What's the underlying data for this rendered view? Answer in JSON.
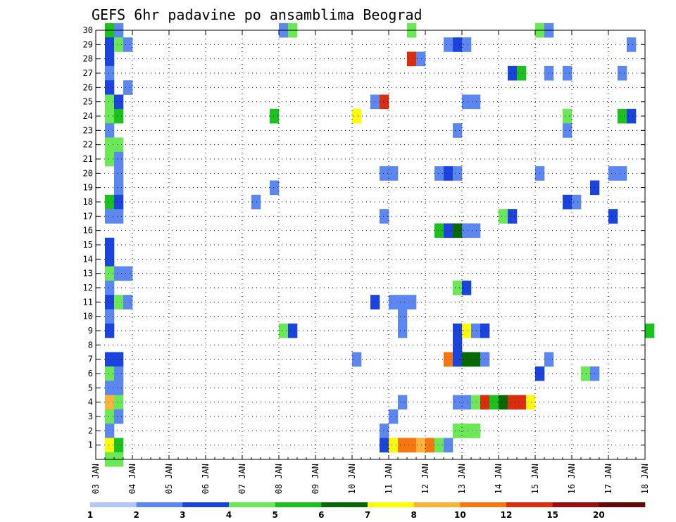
{
  "chart_data": {
    "type": "heatmap",
    "title": "GEFS 6hr padavine po ansamblima Beograd",
    "xlabel": "",
    "ylabel": "",
    "x_tick_labels": [
      "03 JAN",
      "04 JAN",
      "05 JAN",
      "06 JAN",
      "07 JAN",
      "08 JAN",
      "09 JAN",
      "10 JAN",
      "11 JAN",
      "12 JAN",
      "13 JAN",
      "14 JAN",
      "15 JAN",
      "16 JAN",
      "17 JAN",
      "18 JAN"
    ],
    "y_tick_labels": [
      "1",
      "2",
      "3",
      "4",
      "5",
      "6",
      "7",
      "8",
      "9",
      "10",
      "11",
      "12",
      "13",
      "14",
      "15",
      "16",
      "17",
      "18",
      "19",
      "20",
      "21",
      "22",
      "23",
      "24",
      "25",
      "26",
      "27",
      "28",
      "29",
      "30"
    ],
    "xlim": [
      0,
      15
    ],
    "ylim": [
      0,
      30
    ],
    "grid": true,
    "colorbar": {
      "labels": [
        "1",
        "2",
        "3",
        "4",
        "5",
        "6",
        "7",
        "8",
        "10",
        "12",
        "15",
        "20"
      ],
      "colors": [
        "#b3c6fa",
        "#5d87f0",
        "#1b43dd",
        "#6ae855",
        "#1bc21b",
        "#056905",
        "#fbfb08",
        "#fbb439",
        "#f7760d",
        "#db2d0d",
        "#990f0f",
        "#660707"
      ]
    },
    "cell_width_days": 0.25,
    "cells": [
      [
        0.25,
        30,
        4
      ],
      [
        0.5,
        30,
        1
      ],
      [
        5,
        30,
        1
      ],
      [
        5.25,
        30,
        3
      ],
      [
        8.5,
        30,
        3
      ],
      [
        12,
        30,
        3
      ],
      [
        12.25,
        30,
        1
      ],
      [
        0.25,
        29,
        2
      ],
      [
        0.5,
        29,
        3
      ],
      [
        0.75,
        29,
        1
      ],
      [
        9.5,
        29,
        1
      ],
      [
        9.75,
        29,
        2
      ],
      [
        10,
        29,
        1
      ],
      [
        14.5,
        29,
        1
      ],
      [
        0.25,
        28,
        2
      ],
      [
        8.5,
        28,
        9
      ],
      [
        8.75,
        28,
        1
      ],
      [
        0.25,
        27,
        1
      ],
      [
        11.25,
        27,
        2
      ],
      [
        11.5,
        27,
        4
      ],
      [
        12.25,
        27,
        1
      ],
      [
        12.75,
        27,
        1
      ],
      [
        14.25,
        27,
        1
      ],
      [
        0.25,
        26,
        2
      ],
      [
        0.75,
        26,
        1
      ],
      [
        0.25,
        25,
        3
      ],
      [
        0.5,
        25,
        2
      ],
      [
        7.5,
        25,
        1
      ],
      [
        7.75,
        25,
        9
      ],
      [
        10,
        25,
        1
      ],
      [
        10.25,
        25,
        1
      ],
      [
        0.25,
        24,
        3
      ],
      [
        0.5,
        24,
        4
      ],
      [
        4.75,
        24,
        4
      ],
      [
        7,
        24,
        6
      ],
      [
        12.75,
        24,
        3
      ],
      [
        14.25,
        24,
        4
      ],
      [
        14.5,
        24,
        2
      ],
      [
        0.25,
        23,
        1
      ],
      [
        9.75,
        23,
        1
      ],
      [
        12.75,
        23,
        1
      ],
      [
        0.25,
        22,
        3
      ],
      [
        0.5,
        22,
        3
      ],
      [
        0.25,
        21,
        3
      ],
      [
        0.5,
        21,
        1
      ],
      [
        0.5,
        20,
        1
      ],
      [
        7.75,
        20,
        1
      ],
      [
        8,
        20,
        1
      ],
      [
        9.25,
        20,
        1
      ],
      [
        9.5,
        20,
        2
      ],
      [
        9.75,
        20,
        1
      ],
      [
        12,
        20,
        1
      ],
      [
        14,
        20,
        1
      ],
      [
        14.25,
        20,
        1
      ],
      [
        0.5,
        19,
        1
      ],
      [
        4.75,
        19,
        1
      ],
      [
        13.5,
        19,
        2
      ],
      [
        0.25,
        18,
        4
      ],
      [
        0.5,
        18,
        2
      ],
      [
        4.25,
        18,
        1
      ],
      [
        12.75,
        18,
        2
      ],
      [
        13,
        18,
        1
      ],
      [
        0.25,
        17,
        1
      ],
      [
        0.5,
        17,
        1
      ],
      [
        7.75,
        17,
        1
      ],
      [
        11,
        17,
        3
      ],
      [
        11.25,
        17,
        2
      ],
      [
        14,
        17,
        2
      ],
      [
        9.25,
        16,
        4
      ],
      [
        9.5,
        16,
        2
      ],
      [
        9.75,
        16,
        5
      ],
      [
        10,
        16,
        1
      ],
      [
        10.25,
        16,
        1
      ],
      [
        0.25,
        15,
        2
      ],
      [
        0.25,
        14,
        2
      ],
      [
        0.25,
        13,
        3
      ],
      [
        0.5,
        13,
        1
      ],
      [
        0.75,
        13,
        1
      ],
      [
        0.25,
        12,
        1
      ],
      [
        9.75,
        12,
        3
      ],
      [
        10,
        12,
        2
      ],
      [
        0.25,
        11,
        2
      ],
      [
        0.5,
        11,
        3
      ],
      [
        0.75,
        11,
        1
      ],
      [
        7.5,
        11,
        2
      ],
      [
        8,
        11,
        1
      ],
      [
        8.25,
        11,
        1
      ],
      [
        8.5,
        11,
        1
      ],
      [
        0.25,
        10,
        1
      ],
      [
        8.25,
        10,
        1
      ],
      [
        0.25,
        9,
        2
      ],
      [
        5,
        9,
        3
      ],
      [
        5.25,
        9,
        2
      ],
      [
        8.25,
        9,
        1
      ],
      [
        9.75,
        9,
        2
      ],
      [
        10,
        9,
        6
      ],
      [
        10.25,
        9,
        1
      ],
      [
        10.5,
        9,
        2
      ],
      [
        15,
        9,
        4
      ],
      [
        9.75,
        8,
        2
      ],
      [
        0.25,
        7,
        2
      ],
      [
        0.5,
        7,
        2
      ],
      [
        7,
        7,
        1
      ],
      [
        9.5,
        7,
        8
      ],
      [
        9.75,
        7,
        2
      ],
      [
        10,
        7,
        5
      ],
      [
        10.25,
        7,
        5
      ],
      [
        10.5,
        7,
        1
      ],
      [
        12.25,
        7,
        1
      ],
      [
        0.25,
        6,
        3
      ],
      [
        0.5,
        6,
        1
      ],
      [
        12,
        6,
        2
      ],
      [
        13.25,
        6,
        3
      ],
      [
        13.5,
        6,
        1
      ],
      [
        0.25,
        5,
        1
      ],
      [
        0.5,
        5,
        1
      ],
      [
        0.25,
        4,
        7
      ],
      [
        0.5,
        4,
        3
      ],
      [
        8.25,
        4,
        1
      ],
      [
        9.75,
        4,
        1
      ],
      [
        10,
        4,
        1
      ],
      [
        10.25,
        4,
        3
      ],
      [
        10.5,
        4,
        9
      ],
      [
        10.75,
        4,
        4
      ],
      [
        11,
        4,
        5
      ],
      [
        11.25,
        4,
        9
      ],
      [
        11.5,
        4,
        9
      ],
      [
        11.75,
        4,
        6
      ],
      [
        0.25,
        3,
        3
      ],
      [
        0.5,
        3,
        1
      ],
      [
        8,
        3,
        1
      ],
      [
        0.25,
        2,
        1
      ],
      [
        7.75,
        2,
        1
      ],
      [
        9.75,
        2,
        3
      ],
      [
        10,
        2,
        3
      ],
      [
        10.25,
        2,
        3
      ],
      [
        0.25,
        1,
        6
      ],
      [
        0.5,
        1,
        4
      ],
      [
        7.75,
        1,
        2
      ],
      [
        8,
        1,
        6
      ],
      [
        8.25,
        1,
        8
      ],
      [
        8.5,
        1,
        8
      ],
      [
        8.75,
        1,
        7
      ],
      [
        9,
        1,
        8
      ],
      [
        9.25,
        1,
        3
      ],
      [
        9.5,
        1,
        1
      ],
      [
        0.25,
        0,
        3
      ],
      [
        0.5,
        0,
        3
      ]
    ]
  }
}
